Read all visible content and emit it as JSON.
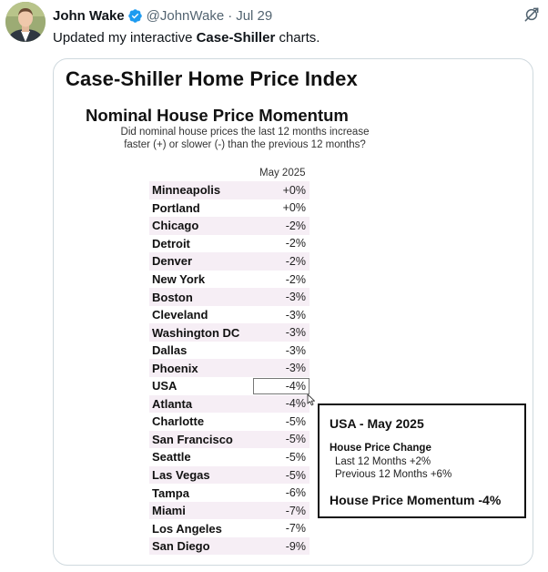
{
  "tweet": {
    "author": "John Wake",
    "handle": "@JohnWake",
    "separator": "·",
    "date": "Jul 29",
    "text_prefix": "Updated my interactive ",
    "text_bold": "Case-Shiller",
    "text_suffix": " charts.",
    "icons": {
      "avatar": "author-avatar",
      "verified": "verified-badge-icon",
      "grok": "grok-icon"
    },
    "colors": {
      "verified": "#1d9bf0",
      "secondary_text": "#536471",
      "primary_text": "#0f1419"
    }
  },
  "media": {
    "title": "Case-Shiller Home Price Index",
    "subtitle": "Nominal House Price Momentum",
    "question_line1": "Did nominal house prices the last 12 months increase",
    "question_line2": "faster (+) or slower (-) than the previous 12 months?",
    "column_header": "May 2025",
    "rows": [
      {
        "city": "Minneapolis",
        "value": "+0%"
      },
      {
        "city": "Portland",
        "value": "+0%"
      },
      {
        "city": "Chicago",
        "value": "-2%"
      },
      {
        "city": "Detroit",
        "value": "-2%"
      },
      {
        "city": "Denver",
        "value": "-2%"
      },
      {
        "city": "New York",
        "value": "-2%"
      },
      {
        "city": "Boston",
        "value": "-3%"
      },
      {
        "city": "Cleveland",
        "value": "-3%"
      },
      {
        "city": "Washington DC",
        "value": "-3%"
      },
      {
        "city": "Dallas",
        "value": "-3%"
      },
      {
        "city": "Phoenix",
        "value": "-3%"
      },
      {
        "city": "USA",
        "value": "-4%"
      },
      {
        "city": "Atlanta",
        "value": "-4%"
      },
      {
        "city": "Charlotte",
        "value": "-5%"
      },
      {
        "city": "San Francisco",
        "value": "-5%"
      },
      {
        "city": "Seattle",
        "value": "-5%"
      },
      {
        "city": "Las Vegas",
        "value": "-5%"
      },
      {
        "city": "Tampa",
        "value": "-6%"
      },
      {
        "city": "Miami",
        "value": "-7%"
      },
      {
        "city": "Los Angeles",
        "value": "-7%"
      },
      {
        "city": "San Diego",
        "value": "-9%"
      }
    ],
    "selected_row": "USA",
    "tooltip": {
      "title": "USA - May 2025",
      "label": "House Price Change",
      "line1": "Last 12 Months +2%",
      "line2": "Previous 12 Months +6%",
      "momentum": "House Price Momentum -4%"
    },
    "colors": {
      "row_stripe": "#f6eef5"
    }
  }
}
